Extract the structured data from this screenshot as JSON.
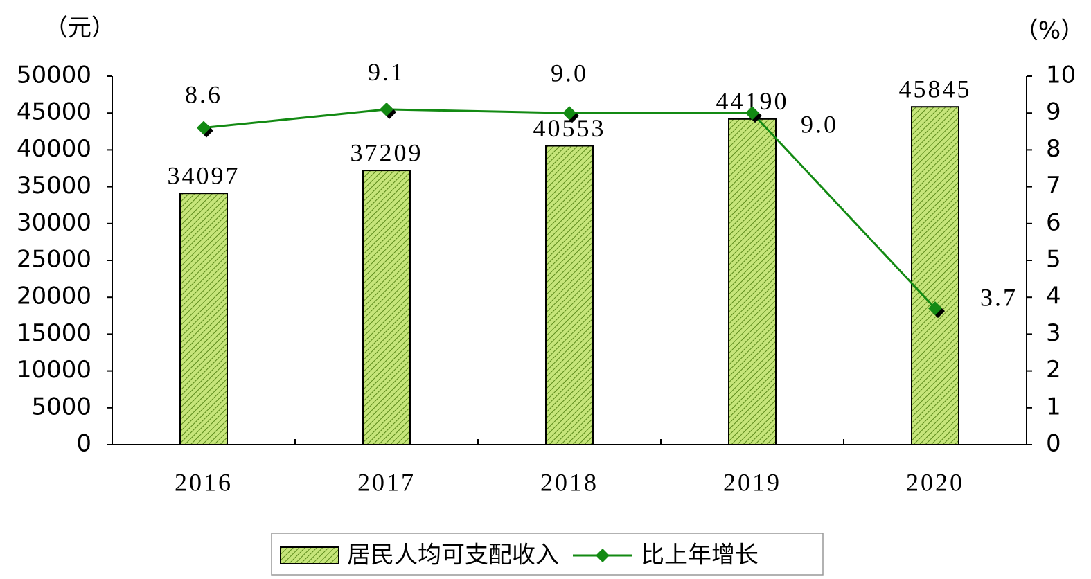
{
  "chart_data": {
    "type": "bar",
    "y_label": "（元）",
    "y2_label": "（%）",
    "categories": [
      "2016",
      "2017",
      "2018",
      "2019",
      "2020"
    ],
    "series": [
      {
        "name": "居民人均可支配收入",
        "type": "bar",
        "color": "#c6e57a",
        "values": [
          34097,
          37209,
          40553,
          44190,
          45845
        ]
      },
      {
        "name": "比上年增长",
        "type": "line",
        "axis": "y2",
        "color": "#138a13",
        "values": [
          8.6,
          9.1,
          9.0,
          9.0,
          3.7
        ],
        "value_labels": [
          "8.6",
          "9.1",
          "9.0",
          "9.0",
          "3.7"
        ]
      }
    ],
    "ylim": [
      0,
      50000
    ],
    "yticks": [
      0,
      5000,
      10000,
      15000,
      20000,
      25000,
      30000,
      35000,
      40000,
      45000,
      50000
    ],
    "y2lim": [
      0,
      10
    ],
    "y2ticks": [
      0,
      1,
      2,
      3,
      4,
      5,
      6,
      7,
      8,
      9,
      10
    ],
    "grid": false,
    "legend": "bottom"
  }
}
